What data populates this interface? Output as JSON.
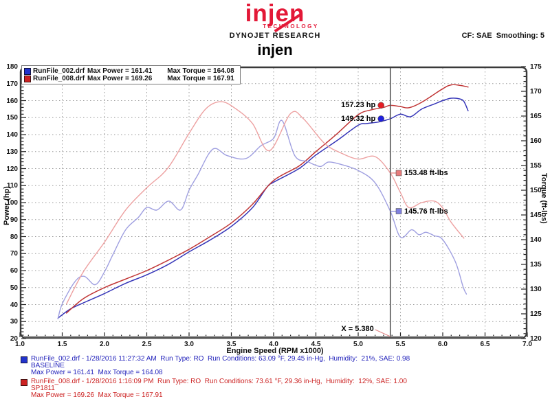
{
  "header": {
    "logo_text": "injen",
    "logo_sub": "TECHNOLOGY",
    "lab": "DYNOJET RESEARCH",
    "correction": "CF: SAE  Smoothing: 5",
    "title": "injen"
  },
  "chart": {
    "x_axis": {
      "title": "Engine Speed (RPM x1000)",
      "min": 1.0,
      "max": 7.0,
      "major_step": 0.5,
      "minor_step": 0.1,
      "tick_labels": [
        "1.0",
        "1.5",
        "2.0",
        "2.5",
        "3.0",
        "3.5",
        "4.0",
        "4.5",
        "5.0",
        "5.5",
        "6.0",
        "6.5",
        "7.0"
      ]
    },
    "y_left": {
      "title": "Power (hp)",
      "min": 20,
      "max": 180,
      "major_step": 10,
      "minor_step": 2,
      "tick_labels": [
        "180",
        "170",
        "160",
        "150",
        "140",
        "130",
        "120",
        "110",
        "100",
        "90",
        "80",
        "70",
        "60",
        "50",
        "40",
        "30",
        "20"
      ]
    },
    "y_right": {
      "title": "Torque (ft-lbs)",
      "min": 120,
      "max": 175,
      "major_step": 5,
      "minor_step": 1,
      "tick_labels": [
        "175",
        "170",
        "165",
        "160",
        "155",
        "150",
        "145",
        "140",
        "135",
        "130",
        "125",
        "120"
      ]
    },
    "cursor": {
      "rpm": 5.38,
      "label": "X = 5.380"
    },
    "legend": [
      {
        "file": "RunFile_002.drf",
        "power": "Max Power = 161.41",
        "torque": "Max Torque = 164.08",
        "color": "#2233cc"
      },
      {
        "file": "RunFile_008.drf",
        "power": "Max Power = 169.26",
        "torque": "Max Torque = 167.91",
        "color": "#cc2222"
      }
    ],
    "annotations": [
      {
        "id": "power-red",
        "label": "157.23 hp",
        "marker": "dot",
        "color": "#e51c23",
        "axis": "power",
        "rpm": 5.27,
        "value": 157.23,
        "label_side": "left"
      },
      {
        "id": "power-blue",
        "label": "149.32 hp",
        "marker": "dot",
        "color": "#2020dd",
        "axis": "power",
        "rpm": 5.27,
        "value": 149.32,
        "label_side": "left"
      },
      {
        "id": "torque-red",
        "label": "153.48 ft-lbs",
        "marker": "square",
        "color": "#e87a7a",
        "axis": "torque",
        "rpm": 5.48,
        "value": 153.48,
        "label_side": "right"
      },
      {
        "id": "torque-blue",
        "label": "145.76 ft-lbs",
        "marker": "square",
        "color": "#8080e0",
        "axis": "torque",
        "rpm": 5.48,
        "value": 145.76,
        "label_side": "right"
      }
    ]
  },
  "chart_data": {
    "type": "line",
    "title": "injen",
    "xlabel": "Engine Speed (RPM x1000)",
    "ylabel_left": "Power (hp)",
    "ylabel_right": "Torque (ft-lbs)",
    "xlim": [
      1.0,
      7.0
    ],
    "ylim_power": [
      20,
      180
    ],
    "ylim_torque": [
      120,
      175
    ],
    "grid": true,
    "legend_position": "top-left",
    "key_values": {
      "cursor_rpm": 5.38,
      "baseline": {
        "max_power": 161.41,
        "max_torque": 164.08,
        "power_at_cursor": 149.32,
        "torque_at_cursor": 145.76
      },
      "sp1811": {
        "max_power": 169.26,
        "max_torque": 167.91,
        "power_at_cursor": 157.23,
        "torque_at_cursor": 153.48
      }
    },
    "series": [
      {
        "id": "power_baseline",
        "name": "RunFile_002.drf Power (hp)",
        "axis": "power",
        "color": "#3535b8",
        "width": 1.5,
        "points": [
          [
            1.45,
            32
          ],
          [
            1.5,
            34
          ],
          [
            1.6,
            37.5
          ],
          [
            1.75,
            41
          ],
          [
            2.0,
            46.5
          ],
          [
            2.25,
            52.5
          ],
          [
            2.5,
            57.5
          ],
          [
            2.75,
            63.5
          ],
          [
            3.0,
            71
          ],
          [
            3.25,
            78
          ],
          [
            3.5,
            86
          ],
          [
            3.75,
            97
          ],
          [
            3.92,
            109
          ],
          [
            4.0,
            112
          ],
          [
            4.3,
            120
          ],
          [
            4.5,
            128
          ],
          [
            4.75,
            136.5
          ],
          [
            5.0,
            145.5
          ],
          [
            5.1,
            146.5
          ],
          [
            5.25,
            147.5
          ],
          [
            5.38,
            149.32
          ],
          [
            5.5,
            152
          ],
          [
            5.62,
            150.5
          ],
          [
            5.75,
            155
          ],
          [
            5.9,
            158
          ],
          [
            6.0,
            160
          ],
          [
            6.1,
            161.41
          ],
          [
            6.2,
            161
          ],
          [
            6.25,
            159.5
          ],
          [
            6.3,
            154
          ]
        ]
      },
      {
        "id": "power_sp1811",
        "name": "RunFile_008.drf Power (hp)",
        "axis": "power",
        "color": "#c03535",
        "width": 1.5,
        "points": [
          [
            1.55,
            35
          ],
          [
            1.75,
            43.5
          ],
          [
            2.0,
            50
          ],
          [
            2.25,
            55
          ],
          [
            2.5,
            60
          ],
          [
            2.75,
            66
          ],
          [
            3.0,
            72.5
          ],
          [
            3.25,
            80
          ],
          [
            3.5,
            88
          ],
          [
            3.75,
            99
          ],
          [
            4.0,
            113
          ],
          [
            4.3,
            121.5
          ],
          [
            4.5,
            130
          ],
          [
            4.75,
            140.5
          ],
          [
            5.0,
            151.7
          ],
          [
            5.15,
            154.5
          ],
          [
            5.3,
            156
          ],
          [
            5.38,
            157.23
          ],
          [
            5.5,
            156.5
          ],
          [
            5.6,
            155.8
          ],
          [
            5.75,
            159
          ],
          [
            6.0,
            167
          ],
          [
            6.1,
            169.26
          ],
          [
            6.2,
            169
          ],
          [
            6.3,
            168
          ]
        ]
      },
      {
        "id": "torque_baseline",
        "name": "RunFile_002.drf Torque (ft-lbs)",
        "axis": "torque",
        "color": "#9f9fe0",
        "width": 1.4,
        "points": [
          [
            1.45,
            124
          ],
          [
            1.5,
            127
          ],
          [
            1.65,
            131.5
          ],
          [
            1.76,
            132.6
          ],
          [
            1.89,
            130.9
          ],
          [
            2.0,
            133.5
          ],
          [
            2.1,
            137
          ],
          [
            2.25,
            142
          ],
          [
            2.4,
            144.5
          ],
          [
            2.5,
            146.5
          ],
          [
            2.62,
            146
          ],
          [
            2.76,
            147.8
          ],
          [
            2.9,
            146
          ],
          [
            3.0,
            150
          ],
          [
            3.1,
            153
          ],
          [
            3.28,
            158.3
          ],
          [
            3.45,
            157
          ],
          [
            3.67,
            156.4
          ],
          [
            3.85,
            159
          ],
          [
            4.0,
            160.5
          ],
          [
            4.1,
            164.08
          ],
          [
            4.25,
            157
          ],
          [
            4.4,
            155.8
          ],
          [
            4.55,
            154.8
          ],
          [
            4.65,
            155.7
          ],
          [
            4.8,
            155.2
          ],
          [
            5.0,
            154
          ],
          [
            5.2,
            151.5
          ],
          [
            5.38,
            145.76
          ],
          [
            5.5,
            140.5
          ],
          [
            5.63,
            142
          ],
          [
            5.72,
            141
          ],
          [
            5.8,
            141.5
          ],
          [
            5.9,
            140.8
          ],
          [
            6.0,
            140
          ],
          [
            6.15,
            135.5
          ],
          [
            6.24,
            130.5
          ],
          [
            6.28,
            129
          ]
        ]
      },
      {
        "id": "torque_sp1811",
        "name": "RunFile_008.drf Torque (ft-lbs)",
        "axis": "torque",
        "color": "#eda0a0",
        "width": 1.4,
        "points": [
          [
            1.55,
            127
          ],
          [
            1.75,
            133.5
          ],
          [
            2.0,
            139.5
          ],
          [
            2.25,
            146
          ],
          [
            2.5,
            150.5
          ],
          [
            2.75,
            154.5
          ],
          [
            3.0,
            161.5
          ],
          [
            3.2,
            166.5
          ],
          [
            3.38,
            167.91
          ],
          [
            3.55,
            166.5
          ],
          [
            3.75,
            163.5
          ],
          [
            3.95,
            158
          ],
          [
            4.2,
            165.5
          ],
          [
            4.35,
            164.5
          ],
          [
            4.6,
            159.5
          ],
          [
            4.8,
            157.5
          ],
          [
            5.0,
            156.3
          ],
          [
            5.2,
            156.8
          ],
          [
            5.38,
            153.48
          ],
          [
            5.5,
            149.5
          ],
          [
            5.6,
            146.5
          ],
          [
            5.75,
            147.5
          ],
          [
            5.9,
            147.8
          ],
          [
            6.0,
            146.4
          ],
          [
            6.1,
            143.5
          ],
          [
            6.25,
            140.3
          ]
        ]
      }
    ]
  },
  "footer": {
    "runs": [
      {
        "color": "#2222bb",
        "file_line": "RunFile_002.drf - 1/28/2016 11:27:32 AM  Run Type: RO  Run Conditions: 63.09 °F, 29.45 in-Hg,  Humidity:  21%, SAE: 0.98",
        "tag": "BASELINE",
        "stats": "Max Power = 161.41  Max Torque = 164.08"
      },
      {
        "color": "#cc2222",
        "file_line": "RunFile_008.drf - 1/28/2016 1:16:09 PM  Run Type: RO  Run Conditions: 73.61 °F, 29.36 in-Hg,  Humidity:  12%, SAE: 1.00",
        "tag": "SP1811",
        "stats": "Max Power = 169.26  Max Torque = 167.91"
      }
    ]
  }
}
